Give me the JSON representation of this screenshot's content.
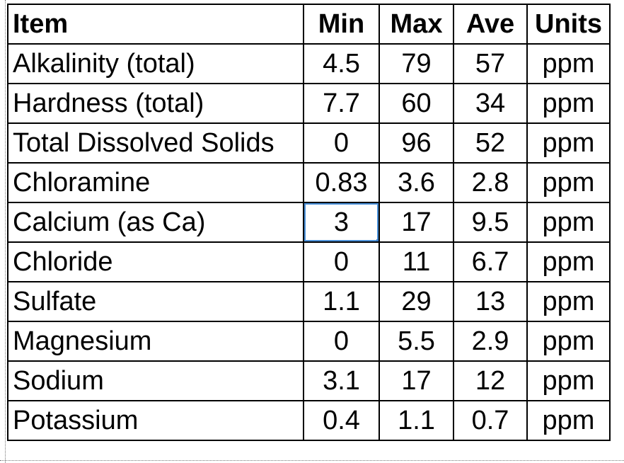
{
  "table": {
    "headers": [
      "Item",
      "Min",
      "Max",
      "Ave",
      "Units"
    ],
    "rows": [
      [
        "Alkalinity (total)",
        "4.5",
        "79",
        "57",
        "ppm"
      ],
      [
        "Hardness (total)",
        "7.7",
        "60",
        "34",
        "ppm"
      ],
      [
        "Total Dissolved Solids",
        "0",
        "96",
        "52",
        "ppm"
      ],
      [
        "Chloramine",
        "0.83",
        "3.6",
        "2.8",
        "ppm"
      ],
      [
        "Calcium (as Ca)",
        "3",
        "17",
        "9.5",
        "ppm"
      ],
      [
        "Chloride",
        "0",
        "11",
        "6.7",
        "ppm"
      ],
      [
        "Sulfate",
        "1.1",
        "29",
        "13",
        "ppm"
      ],
      [
        "Magnesium",
        "0",
        "5.5",
        "2.9",
        "ppm"
      ],
      [
        "Sodium",
        "3.1",
        "17",
        "12",
        "ppm"
      ],
      [
        "Potassium",
        "0.4",
        "1.1",
        "0.7",
        "ppm"
      ]
    ]
  },
  "selection": {
    "accent_color": "#4a90d9"
  }
}
